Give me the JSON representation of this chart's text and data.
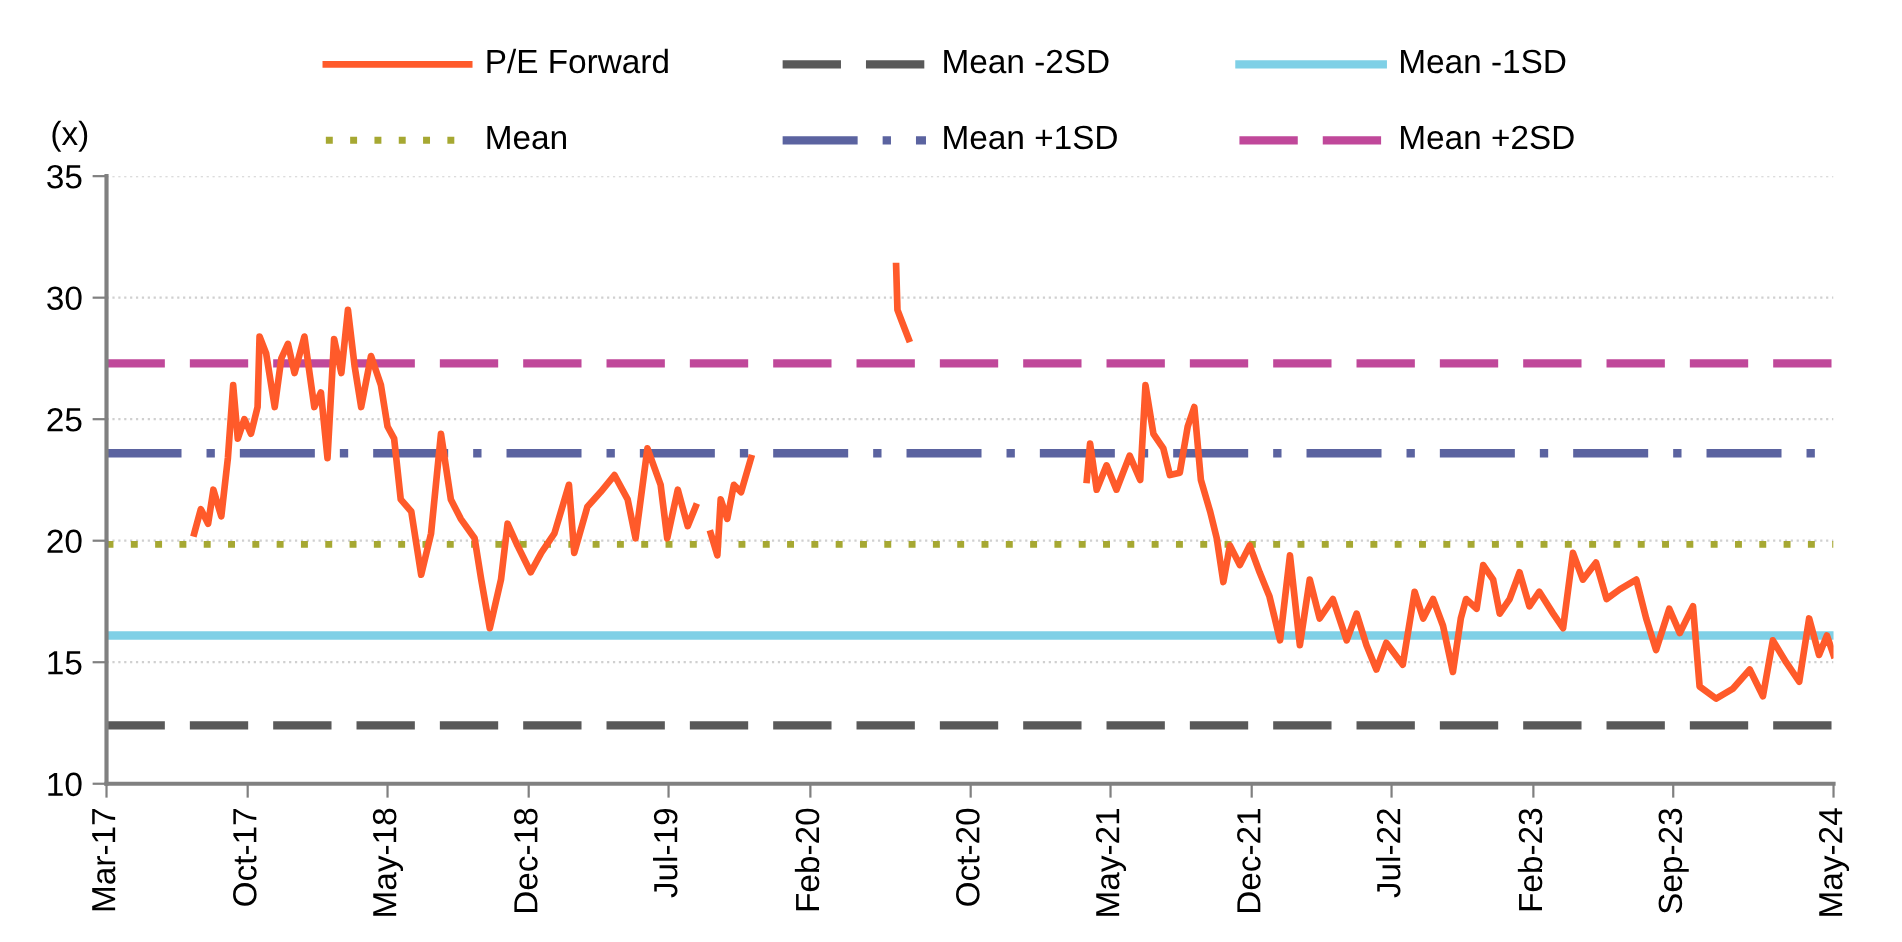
{
  "chart_data": {
    "type": "line",
    "ylabel": "(x)",
    "xlim": [
      "2017-03-15",
      "2024-05-15"
    ],
    "xticks": [
      {
        "value": "2017-03-15",
        "label": "Mar-17"
      },
      {
        "value": "2017-10-15",
        "label": "Oct-17"
      },
      {
        "value": "2018-05-15",
        "label": "May-18"
      },
      {
        "value": "2018-12-15",
        "label": "Dec-18"
      },
      {
        "value": "2019-07-15",
        "label": "Jul-19"
      },
      {
        "value": "2020-02-15",
        "label": "Feb-20"
      },
      {
        "value": "2020-10-15",
        "label": "Oct-20"
      },
      {
        "value": "2021-05-15",
        "label": "May-21"
      },
      {
        "value": "2021-12-15",
        "label": "Dec-21"
      },
      {
        "value": "2022-07-15",
        "label": "Jul-22"
      },
      {
        "value": "2023-02-15",
        "label": "Feb-23"
      },
      {
        "value": "2023-09-15",
        "label": "Sep-23"
      },
      {
        "value": "2024-05-15",
        "label": "May-24"
      }
    ],
    "ylim": [
      10,
      35
    ],
    "yticks": [
      10,
      15,
      20,
      25,
      30,
      35
    ],
    "grid": "y",
    "legend": "top",
    "marker": "none",
    "line_style": "solid",
    "series": [
      {
        "name": "P/E Forward",
        "color": "#ff5a2a",
        "x": [
          "2017-07-26",
          "2017-08-05",
          "2017-08-16",
          "2017-08-24",
          "2017-09-05",
          "2017-09-15",
          "2017-09-23",
          "2017-09-30",
          "2017-10-10",
          "2017-10-20",
          "2017-10-30",
          "2017-11-02",
          "2017-11-12",
          "2017-11-25",
          "2017-12-05",
          "2017-12-15",
          "2017-12-25",
          "2018-01-09",
          "2018-01-24",
          "2018-02-03",
          "2018-02-13",
          "2018-02-23",
          "2018-03-06",
          "2018-03-16",
          "2018-03-26",
          "2018-04-05",
          "2018-04-20",
          "2018-05-05",
          "2018-05-15",
          "2018-05-25",
          "2018-06-04",
          "2018-06-20",
          "2018-07-05",
          "2018-07-20",
          "2018-08-04",
          "2018-08-19",
          "2018-09-03",
          "2018-09-24",
          "2018-10-04",
          "2018-10-17",
          "2018-11-03",
          "2018-11-13",
          "2018-11-28",
          "2018-12-18",
          "2019-01-03",
          "2019-01-23",
          "2019-02-14",
          "2019-02-22",
          "2019-03-14",
          "2019-04-03",
          "2019-04-24",
          "2019-05-14",
          "2019-05-26",
          "2019-06-13",
          "2019-07-03",
          "2019-07-13",
          "2019-07-29",
          "2019-08-13",
          "2019-08-25",
          "2019-09-01",
          "2019-09-17",
          "2019-09-27",
          "2019-10-02",
          "2019-10-12",
          "2019-10-22",
          "2019-11-02",
          "2019-11-17",
          "2020-03-01",
          "2020-06-24",
          "2020-06-26",
          "2020-07-03",
          "2020-07-13",
          "2020-12-01",
          "2021-04-09",
          "2021-04-14",
          "2021-04-24",
          "2021-05-09",
          "2021-05-24",
          "2021-06-13",
          "2021-06-29",
          "2021-07-07",
          "2021-07-19",
          "2021-08-03",
          "2021-08-13",
          "2021-08-28",
          "2021-09-09",
          "2021-09-19",
          "2021-09-29",
          "2021-10-13",
          "2021-10-23",
          "2021-11-02",
          "2021-11-12",
          "2021-11-27",
          "2021-12-12",
          "2021-12-27",
          "2022-01-11",
          "2022-01-27",
          "2022-02-11",
          "2022-02-26",
          "2022-03-13",
          "2022-03-28",
          "2022-04-17",
          "2022-05-08",
          "2022-05-23",
          "2022-06-07",
          "2022-06-22",
          "2022-07-07",
          "2022-08-01",
          "2022-08-19",
          "2022-09-01",
          "2022-09-16",
          "2022-10-01",
          "2022-10-16",
          "2022-10-28",
          "2022-11-05",
          "2022-11-21",
          "2022-12-01",
          "2022-12-16",
          "2022-12-26",
          "2023-01-10",
          "2023-01-25",
          "2023-02-09",
          "2023-02-24",
          "2023-03-17",
          "2023-04-01",
          "2023-04-16",
          "2023-05-01",
          "2023-05-21",
          "2023-06-06",
          "2023-06-26",
          "2023-07-21",
          "2023-08-05",
          "2023-08-20",
          "2023-09-09",
          "2023-09-25",
          "2023-10-15",
          "2023-10-25",
          "2023-11-19",
          "2023-12-14",
          "2024-01-09",
          "2024-01-29",
          "2024-02-13",
          "2024-03-04",
          "2024-03-24",
          "2024-04-08",
          "2024-04-23",
          "2024-05-05",
          "2024-05-15"
        ],
        "values": [
          20.3,
          21.3,
          20.7,
          22.1,
          21.0,
          23.4,
          26.4,
          24.2,
          25.0,
          24.4,
          25.5,
          28.4,
          27.7,
          25.5,
          27.5,
          28.1,
          26.9,
          28.4,
          25.5,
          26.1,
          23.4,
          28.3,
          26.9,
          29.5,
          27.2,
          25.5,
          27.6,
          26.4,
          24.7,
          24.2,
          21.7,
          21.2,
          18.6,
          20.3,
          24.4,
          21.7,
          20.9,
          20.1,
          18.4,
          16.4,
          18.4,
          20.7,
          19.8,
          18.7,
          19.5,
          20.3,
          22.3,
          19.5,
          21.4,
          22.0,
          22.7,
          21.7,
          20.1,
          23.8,
          22.3,
          20.1,
          22.1,
          20.6,
          21.4,
          null,
          20.3,
          19.4,
          21.7,
          20.9,
          22.3,
          22.0,
          23.4,
          null,
          31.3,
          29.5,
          29.0,
          28.3,
          null,
          22.5,
          24.0,
          22.1,
          23.1,
          22.1,
          23.5,
          22.5,
          26.4,
          24.4,
          23.8,
          22.7,
          22.8,
          24.7,
          25.5,
          22.5,
          21.2,
          20.1,
          18.3,
          19.8,
          19.0,
          19.8,
          18.7,
          17.7,
          15.9,
          19.4,
          15.7,
          18.4,
          16.8,
          17.6,
          15.9,
          17.0,
          15.7,
          14.7,
          15.8,
          14.9,
          17.9,
          16.8,
          17.6,
          16.5,
          14.6,
          16.8,
          17.6,
          17.2,
          19.0,
          18.4,
          17.0,
          17.6,
          18.7,
          17.3,
          17.9,
          17.0,
          16.4,
          19.5,
          18.4,
          19.1,
          17.6,
          18.0,
          18.4,
          16.8,
          15.5,
          17.2,
          16.2,
          17.3,
          14.0,
          13.5,
          13.9,
          14.7,
          13.6,
          15.9,
          15.0,
          14.2,
          16.8,
          15.3,
          16.1,
          15.3
        ]
      }
    ],
    "ref_lines": [
      {
        "axis": "y",
        "value": 12.4,
        "label": "Mean -2SD",
        "color": "#595959",
        "line_style": "dashed"
      },
      {
        "axis": "y",
        "value": 16.1,
        "label": "Mean -1SD",
        "color": "#7fd0e6",
        "line_style": "solid"
      },
      {
        "axis": "y",
        "value": 19.85,
        "label": "Mean",
        "color": "#a6a832",
        "line_style": "dotted"
      },
      {
        "axis": "y",
        "value": 23.6,
        "label": "Mean +1SD",
        "color": "#5b63a0",
        "line_style": "dashdot"
      },
      {
        "axis": "y",
        "value": 27.3,
        "label": "Mean +2SD",
        "color": "#c0489a",
        "line_style": "dashed"
      }
    ]
  }
}
